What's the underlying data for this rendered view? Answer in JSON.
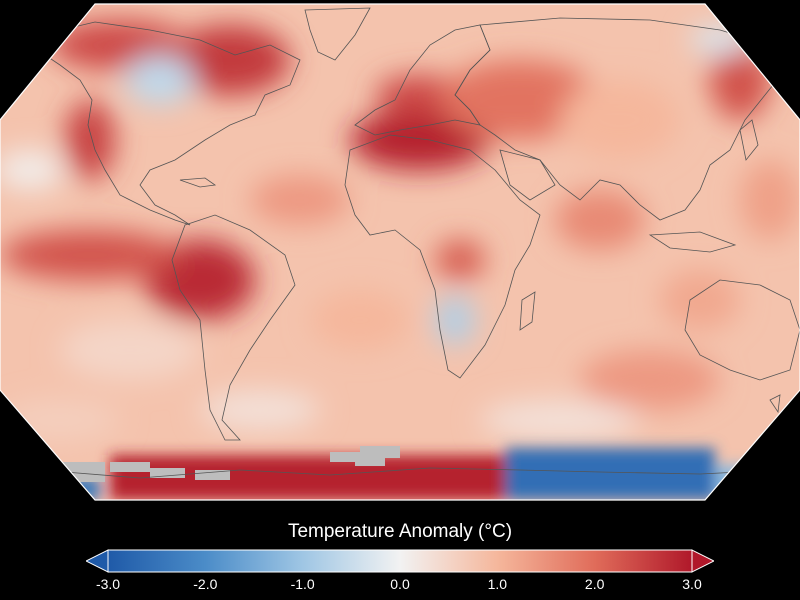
{
  "legend": {
    "title": "Temperature Anomaly (°C)",
    "min": -3.0,
    "max": 3.0,
    "ticks": [
      "-3.0",
      "-2.0",
      "-1.0",
      "0.0",
      "1.0",
      "2.0",
      "3.0"
    ],
    "extend": "both"
  },
  "colormap": {
    "stops": [
      "#1f5aa8",
      "#4b8cc8",
      "#9fc6e4",
      "#f2f2f2",
      "#f5b79c",
      "#e06c5a",
      "#b0182a"
    ],
    "no_data_color": "#bdbdbd",
    "coastline_color": "#555555",
    "background": "#000000"
  },
  "map": {
    "projection": "robinson",
    "base_anomaly": 0.8,
    "continents": [
      "north-america",
      "south-america",
      "africa",
      "europe",
      "asia",
      "australia",
      "antarctica",
      "greenland"
    ]
  }
}
